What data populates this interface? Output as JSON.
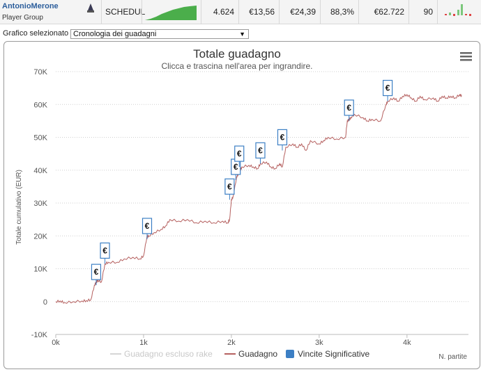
{
  "header": {
    "player_name": "AntonioMerone",
    "player_group": "Player Group",
    "status": "SCHEDUL",
    "stats": [
      "4.624",
      "€13,56",
      "€24,39",
      "88,3%",
      "€62.722",
      "90"
    ]
  },
  "controls": {
    "chart_select_label": "Grafico selezionato",
    "chart_select_value": "Cronologia dei guadagni",
    "chart_select_arrow": "▼",
    "menu_icon": "hamburger-menu-icon"
  },
  "chart_data": {
    "type": "line",
    "title": "Totale guadagno",
    "subtitle": "Clicca e trascina nell'area per ingrandire.",
    "ylabel": "Totale cumulativo (EUR)",
    "xlabel": "N. partite",
    "ylim": [
      -10000,
      70000
    ],
    "xlim": [
      0,
      4700
    ],
    "x_ticks": [
      "0k",
      "1k",
      "2k",
      "3k",
      "4k"
    ],
    "y_ticks": [
      "-10K",
      "0",
      "10K",
      "20K",
      "30K",
      "40K",
      "50K",
      "60K",
      "70K"
    ],
    "grid": "horizontal dotted",
    "legend_position": "bottom-center",
    "legend": [
      "Guadagno escluso rake",
      "Guadagno",
      "Vincite Significative"
    ],
    "colors": {
      "guadagno": "#b5605f",
      "escluso_rake": "#d6d6d6",
      "flags": "#3c7fc4"
    },
    "series": [
      {
        "name": "Guadagno",
        "x": [
          0,
          50,
          100,
          200,
          300,
          350,
          400,
          440,
          460,
          480,
          520,
          560,
          600,
          700,
          780,
          880,
          960,
          1000,
          1040,
          1060,
          1120,
          1200,
          1250,
          1300,
          1400,
          1500,
          1600,
          1700,
          1800,
          1900,
          1960,
          1980,
          2000,
          2020,
          2060,
          2080,
          2100,
          2120,
          2200,
          2250,
          2300,
          2330,
          2400,
          2450,
          2500,
          2550,
          2580,
          2620,
          2700,
          2750,
          2800,
          2850,
          2900,
          3000,
          3050,
          3100,
          3200,
          3300,
          3320,
          3340,
          3360,
          3400,
          3500,
          3550,
          3600,
          3700,
          3760,
          3780,
          3850,
          3900,
          3950,
          4000,
          4050,
          4100,
          4150,
          4200,
          4300,
          4350,
          4400,
          4450,
          4500,
          4550,
          4600,
          4624
        ],
        "values": [
          0,
          200,
          -300,
          0,
          200,
          300,
          600,
          5000,
          6000,
          6500,
          6000,
          11500,
          12000,
          12000,
          13000,
          13500,
          13000,
          14000,
          20000,
          20000,
          21000,
          22000,
          23000,
          25000,
          24500,
          25000,
          24000,
          24500,
          24000,
          24500,
          24000,
          25000,
          31000,
          32000,
          38000,
          39000,
          40000,
          41000,
          41500,
          41000,
          40500,
          42000,
          42500,
          41000,
          40500,
          42000,
          41000,
          47000,
          48000,
          47000,
          48000,
          46000,
          49000,
          48000,
          49000,
          50000,
          49500,
          50000,
          55000,
          55500,
          56000,
          57000,
          56000,
          55000,
          55500,
          55000,
          60000,
          61000,
          62000,
          61000,
          62500,
          63000,
          62000,
          61000,
          62500,
          61500,
          62000,
          61000,
          62500,
          62000,
          62500,
          62000,
          63000,
          62700
        ]
      }
    ],
    "flags": [
      {
        "x": 460,
        "y": 5000,
        "label": "€"
      },
      {
        "x": 560,
        "y": 11500,
        "label": "€"
      },
      {
        "x": 1040,
        "y": 19000,
        "label": "€"
      },
      {
        "x": 1980,
        "y": 31000,
        "label": "€"
      },
      {
        "x": 2050,
        "y": 37000,
        "label": "€"
      },
      {
        "x": 2090,
        "y": 41000,
        "label": "€"
      },
      {
        "x": 2330,
        "y": 42000,
        "label": "€"
      },
      {
        "x": 2580,
        "y": 46000,
        "label": "€"
      },
      {
        "x": 3340,
        "y": 55000,
        "label": "€"
      },
      {
        "x": 3780,
        "y": 61000,
        "label": "€"
      }
    ]
  }
}
